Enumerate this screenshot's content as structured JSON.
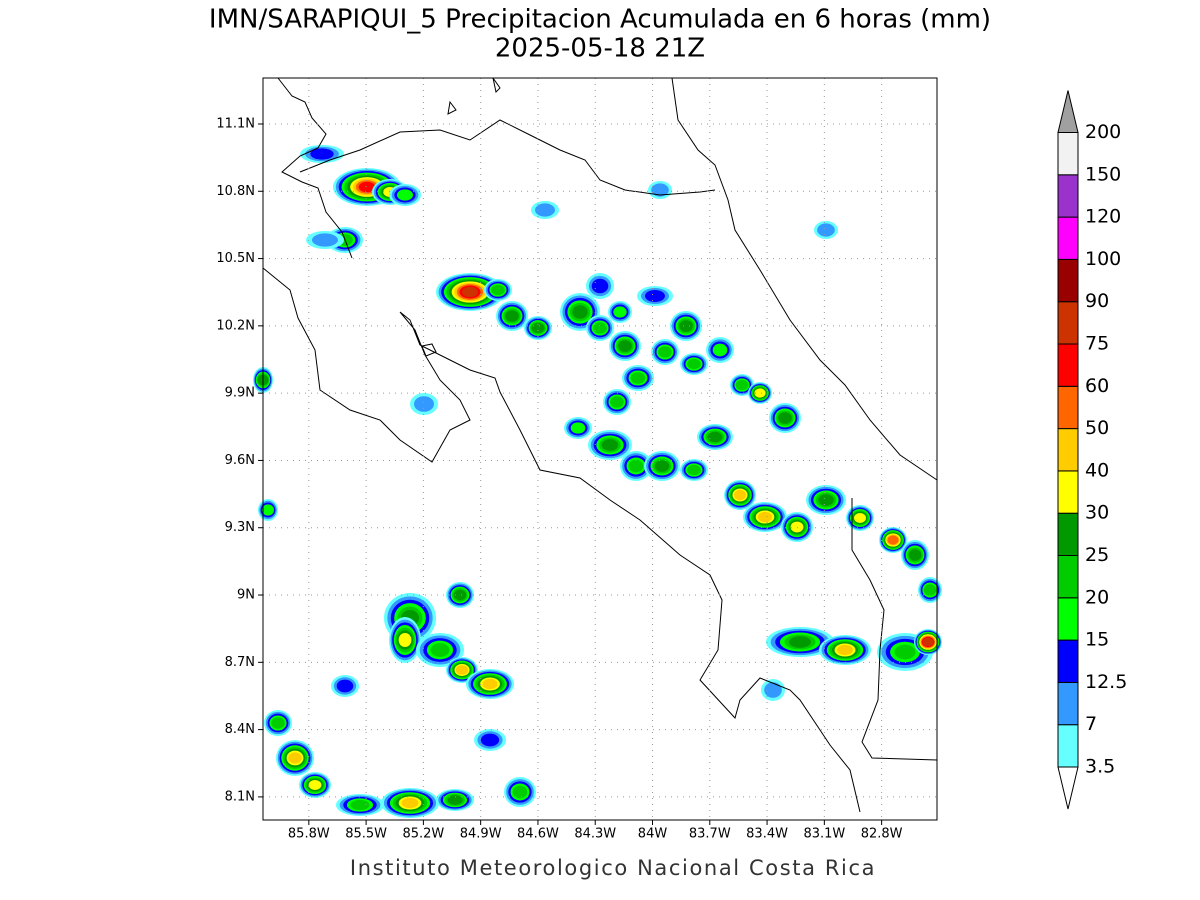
{
  "map": {
    "title": "IMN/SARAPIQUI_5 Precipitacion Acumulada en 6 horas (mm)",
    "subtitle": "2025-05-18 21Z",
    "footer": "Instituto Meteorologico Nacional Costa Rica",
    "xlim": [
      -86.04,
      -82.51
    ],
    "ylim": [
      7.997,
      11.305
    ],
    "xticks": [
      {
        "value": -85.8,
        "label": "85.8W"
      },
      {
        "value": -85.5,
        "label": "85.5W"
      },
      {
        "value": -85.2,
        "label": "85.2W"
      },
      {
        "value": -84.9,
        "label": "84.9W"
      },
      {
        "value": -84.6,
        "label": "84.6W"
      },
      {
        "value": -84.3,
        "label": "84.3W"
      },
      {
        "value": -84.0,
        "label": "84W"
      },
      {
        "value": -83.7,
        "label": "83.7W"
      },
      {
        "value": -83.4,
        "label": "83.4W"
      },
      {
        "value": -83.1,
        "label": "83.1W"
      },
      {
        "value": -82.8,
        "label": "82.8W"
      }
    ],
    "yticks": [
      {
        "value": 8.1,
        "label": "8.1N"
      },
      {
        "value": 8.4,
        "label": "8.4N"
      },
      {
        "value": 8.7,
        "label": "8.7N"
      },
      {
        "value": 9.0,
        "label": "9N"
      },
      {
        "value": 9.3,
        "label": "9.3N"
      },
      {
        "value": 9.6,
        "label": "9.6N"
      },
      {
        "value": 9.9,
        "label": "9.9N"
      },
      {
        "value": 10.2,
        "label": "10.2N"
      },
      {
        "value": 10.5,
        "label": "10.5N"
      },
      {
        "value": 10.8,
        "label": "10.8N"
      },
      {
        "value": 11.1,
        "label": "11.1N"
      }
    ],
    "grid": true,
    "colorbar": {
      "levels": [
        3.5,
        7,
        12.5,
        15,
        20,
        25,
        30,
        40,
        50,
        60,
        75,
        90,
        100,
        120,
        150,
        200
      ],
      "colors": [
        "#66ffff",
        "#3399ff",
        "#0000ff",
        "#00ff00",
        "#00cc00",
        "#009900",
        "#ffff00",
        "#ffcc00",
        "#ff6600",
        "#ff0000",
        "#cc3300",
        "#990000",
        "#ff00ff",
        "#9933cc",
        "#f2f2f2"
      ],
      "under_color": "#ffffff",
      "over_color": "#a0a0a0"
    }
  }
}
